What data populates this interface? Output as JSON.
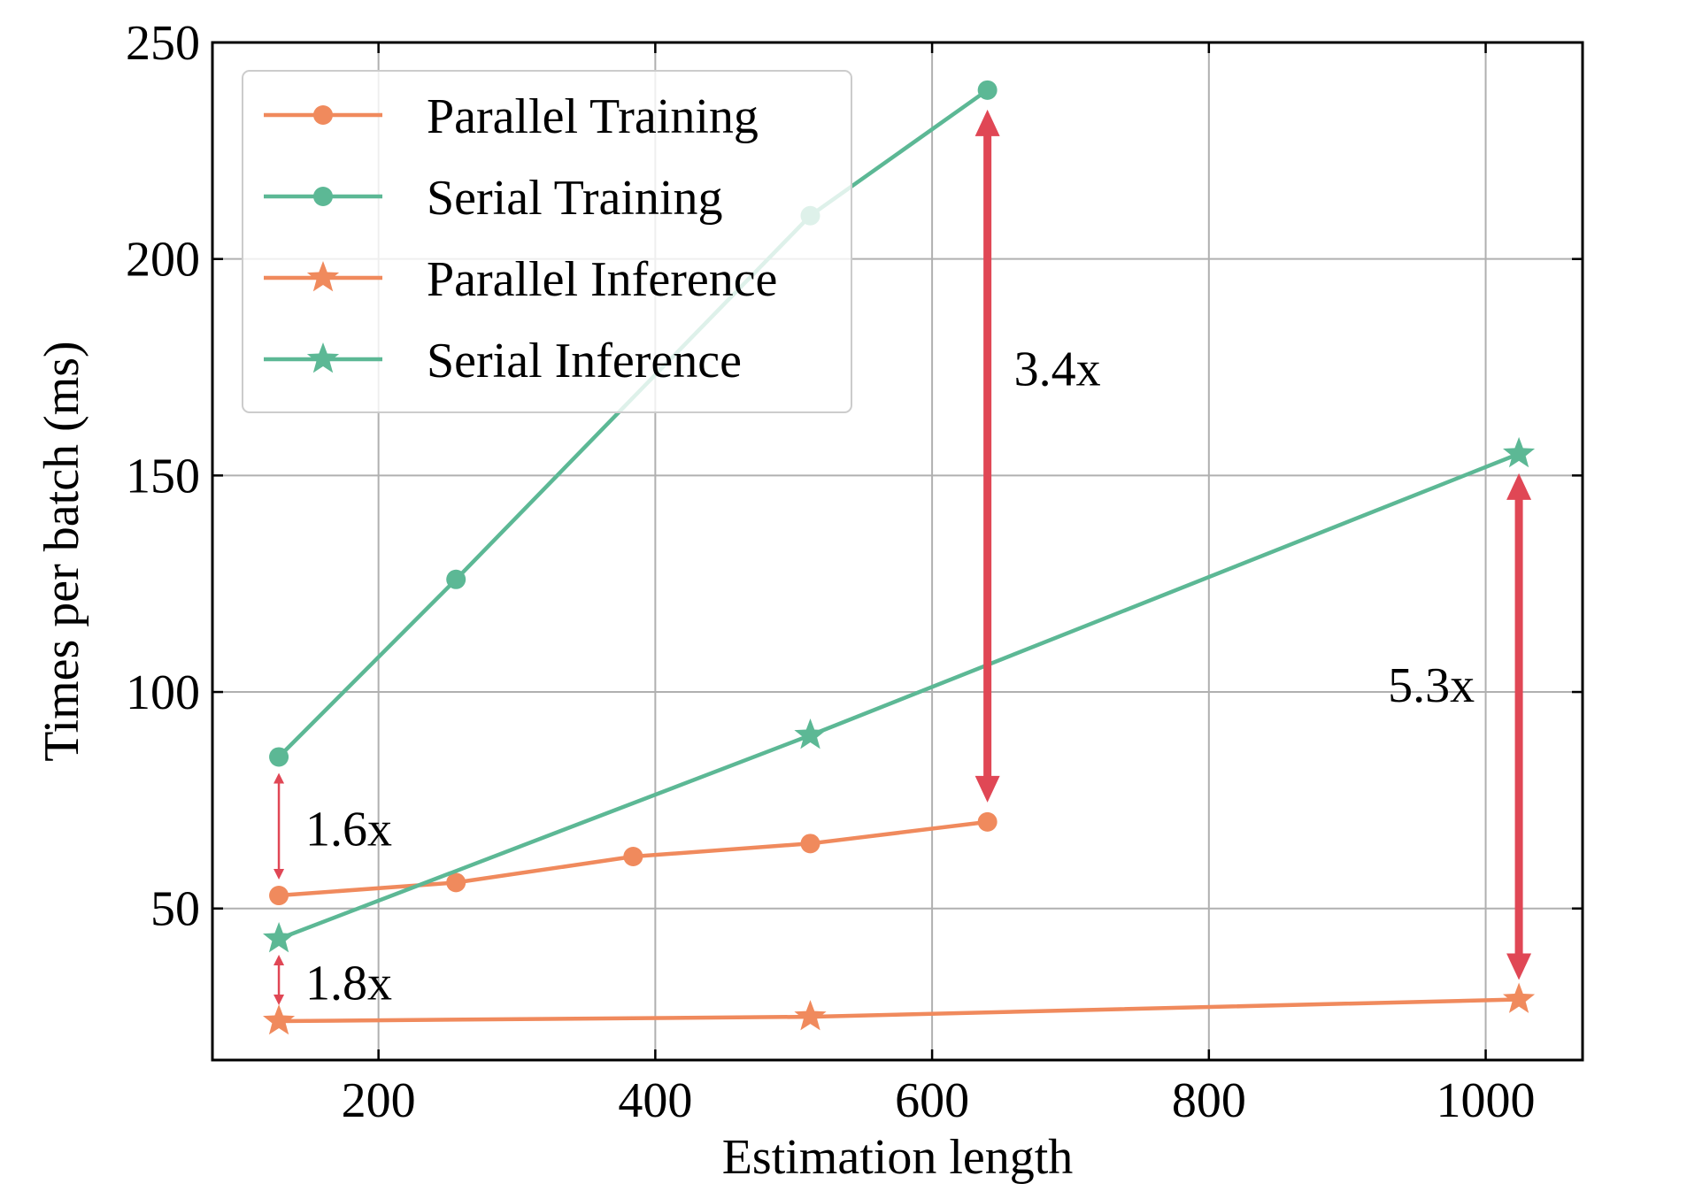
{
  "chart_data": {
    "type": "line",
    "title": "",
    "xlabel": "Estimation length",
    "ylabel": "Times per batch (ms)",
    "xlim": [
      80,
      1070
    ],
    "ylim": [
      15,
      250
    ],
    "xticks": [
      200,
      400,
      600,
      800,
      1000
    ],
    "yticks": [
      50,
      100,
      150,
      200,
      250
    ],
    "grid": true,
    "legend_position": "top-left",
    "series": [
      {
        "name": "Parallel Training",
        "color": "#f08a5d",
        "marker": "circle",
        "x": [
          128,
          256,
          384,
          512,
          640
        ],
        "y": [
          53,
          56,
          62,
          65,
          70
        ]
      },
      {
        "name": "Serial Training",
        "color": "#5cb895",
        "marker": "circle",
        "x": [
          128,
          256,
          512,
          640
        ],
        "y": [
          85,
          126,
          210,
          239
        ]
      },
      {
        "name": "Parallel Inference",
        "color": "#f08a5d",
        "marker": "star",
        "x": [
          128,
          512,
          1024
        ],
        "y": [
          24,
          25,
          29
        ]
      },
      {
        "name": "Serial Inference",
        "color": "#5cb895",
        "marker": "star",
        "x": [
          128,
          512,
          1024
        ],
        "y": [
          43,
          90,
          155
        ]
      }
    ],
    "annotations": [
      {
        "label": "1.6x",
        "x": 128,
        "y_from": 53,
        "y_to": 85,
        "color": "#e04755"
      },
      {
        "label": "1.8x",
        "x": 128,
        "y_from": 24,
        "y_to": 43,
        "color": "#e04755"
      },
      {
        "label": "3.4x",
        "x": 640,
        "y_from": 70,
        "y_to": 239,
        "color": "#e04755"
      },
      {
        "label": "5.3x",
        "x": 1024,
        "y_from": 29,
        "y_to": 155,
        "color": "#e04755"
      }
    ]
  }
}
